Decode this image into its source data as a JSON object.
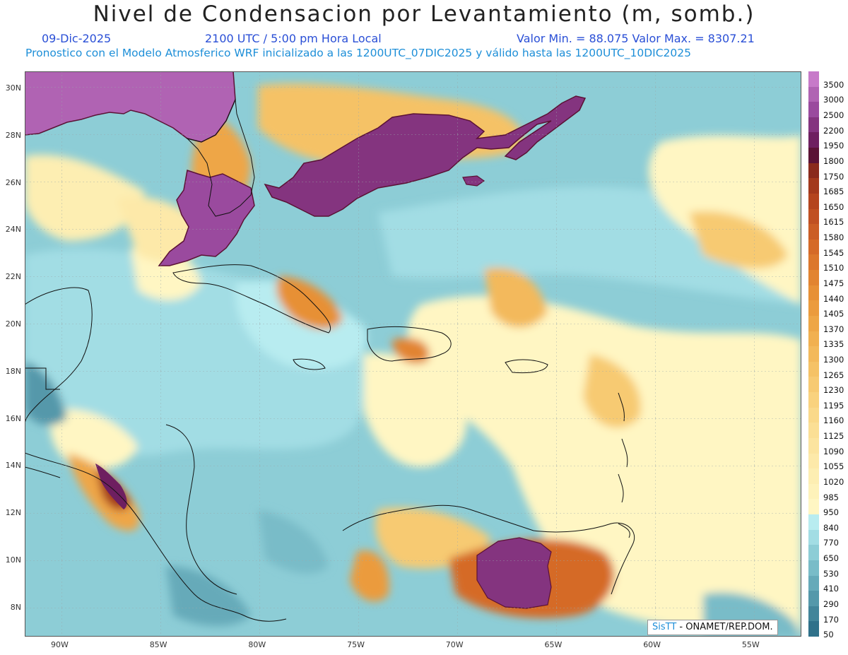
{
  "title": "Nivel de Condensacion por Levantamiento (m, somb.)",
  "date": "09-Dic-2025",
  "time": "2100 UTC / 5:00 pm Hora Local",
  "min_max": "Valor Min. = 88.075   Valor Max. = 8307.21",
  "forecast": "Pronostico con el Modelo Atmosferico WRF inicializado a las 1200UTC_07DIC2025 y válido hasta las  1200UTC_10DIC2025",
  "credit_brand": "SisTT",
  "credit_org": " - ONAMET/REP.DOM.",
  "lon_labels": [
    "90W",
    "85W",
    "80W",
    "75W",
    "70W",
    "65W",
    "60W",
    "55W"
  ],
  "lat_labels": [
    "30N",
    "28N",
    "26N",
    "24N",
    "22N",
    "20N",
    "18N",
    "16N",
    "14N",
    "12N",
    "10N",
    "8N"
  ],
  "legend": [
    {
      "label": "3500",
      "color": "#c77ac9"
    },
    {
      "label": "3000",
      "color": "#b063b3"
    },
    {
      "label": "2500",
      "color": "#9a4a9e"
    },
    {
      "label": "2200",
      "color": "#84347f"
    },
    {
      "label": "1950",
      "color": "#6e1f60"
    },
    {
      "label": "1800",
      "color": "#5b1235"
    },
    {
      "label": "1750",
      "color": "#8a2a1c"
    },
    {
      "label": "1685",
      "color": "#a3391c"
    },
    {
      "label": "1650",
      "color": "#b4441e"
    },
    {
      "label": "1615",
      "color": "#c05022"
    },
    {
      "label": "1580",
      "color": "#cb5d25"
    },
    {
      "label": "1545",
      "color": "#d56a28"
    },
    {
      "label": "1510",
      "color": "#dc772c"
    },
    {
      "label": "1475",
      "color": "#e28430"
    },
    {
      "label": "1440",
      "color": "#e79036"
    },
    {
      "label": "1405",
      "color": "#eb9b3d"
    },
    {
      "label": "1370",
      "color": "#eea646"
    },
    {
      "label": "1335",
      "color": "#f1b050"
    },
    {
      "label": "1300",
      "color": "#f3b95b"
    },
    {
      "label": "1265",
      "color": "#f5c266"
    },
    {
      "label": "1230",
      "color": "#f7ca72"
    },
    {
      "label": "1195",
      "color": "#f9d27e"
    },
    {
      "label": "1160",
      "color": "#fad98a"
    },
    {
      "label": "1125",
      "color": "#fbdf95"
    },
    {
      "label": "1090",
      "color": "#fce49f"
    },
    {
      "label": "1055",
      "color": "#fde9a9"
    },
    {
      "label": "1020",
      "color": "#fdeeb2"
    },
    {
      "label": "985",
      "color": "#fef2ba"
    },
    {
      "label": "950",
      "color": "#fff6c3"
    },
    {
      "label": "840",
      "color": "#b8ecf0"
    },
    {
      "label": "770",
      "color": "#a2dde4"
    },
    {
      "label": "650",
      "color": "#8dcdd6"
    },
    {
      "label": "530",
      "color": "#79bcc8"
    },
    {
      "label": "410",
      "color": "#66aab9"
    },
    {
      "label": "290",
      "color": "#5498aa"
    },
    {
      "label": "170",
      "color": "#42859a"
    },
    {
      "label": "50",
      "color": "#2f718a"
    }
  ]
}
